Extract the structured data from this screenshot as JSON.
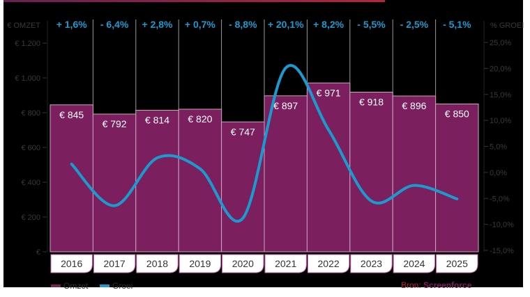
{
  "chart_data": {
    "type": "bar",
    "categories": [
      "2016",
      "2017",
      "2018",
      "2019",
      "2020",
      "2021",
      "2022",
      "2023",
      "2024",
      "2025"
    ],
    "series": [
      {
        "name": "Omzet",
        "type": "bar",
        "axis": "left",
        "values": [
          845,
          792,
          814,
          820,
          747,
          897,
          971,
          918,
          896,
          850
        ],
        "labels": [
          "€ 845",
          "€ 792",
          "€ 814",
          "€ 820",
          "€ 747",
          "€ 897",
          "€ 971",
          "€ 918",
          "€ 896",
          "€ 850"
        ],
        "color": "#7b1f5e"
      },
      {
        "name": "Groei",
        "type": "line",
        "axis": "right",
        "values": [
          1.6,
          -6.4,
          2.8,
          0.7,
          -8.8,
          20.1,
          8.2,
          -5.5,
          -2.5,
          -5.1
        ],
        "labels": [
          "+ 1,6%",
          "- 6,4%",
          "+ 2,8%",
          "+ 0,7%",
          "- 8,8%",
          "+ 20,1%",
          "+ 8,2%",
          "- 5,5%",
          "- 2,5%",
          "- 5,1%"
        ],
        "color": "#1a9bd0"
      }
    ],
    "left_axis": {
      "label": "€ OMZET",
      "range": [
        0,
        1200
      ],
      "ticks": [
        "€",
        "€ 200",
        "€ 400",
        "€ 600",
        "€ 800",
        "€ 1.000",
        "€ 1.200"
      ]
    },
    "right_axis": {
      "label": "% GROEI",
      "range": [
        -15,
        25
      ],
      "ticks": [
        "-15,0%",
        "-10,0%",
        "-5,0%",
        "0,0%",
        "5,0%",
        "10,0%",
        "15,0%",
        "20,0%",
        "25,0%"
      ]
    },
    "legend": {
      "placement": "bottom-left",
      "entries": [
        "Omzet",
        "Groei"
      ]
    },
    "source": {
      "prefix": "Bron:",
      "name": "Screenforce"
    }
  }
}
